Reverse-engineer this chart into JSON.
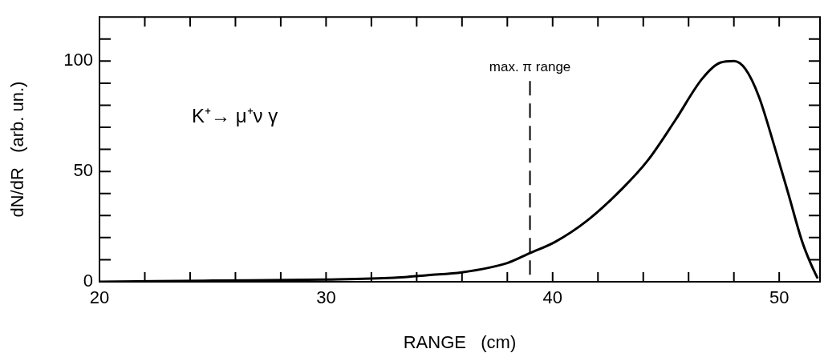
{
  "chart_data": {
    "type": "line",
    "xlabel": "RANGE   (cm)",
    "ylabel": "dN/dR   (arb. un.)",
    "x": [
      20,
      25,
      30,
      33,
      34.5,
      36,
      38,
      39,
      40.1,
      41.5,
      43.1,
      44.2,
      45.4,
      46.6,
      47.4,
      48,
      48.5,
      49.1,
      49.8,
      50.4,
      51,
      51.4,
      51.7
    ],
    "series": [
      {
        "color": "#000000",
        "values": [
          0,
          0.5,
          1,
          1.8,
          3,
          4.3,
          8.5,
          13,
          18,
          27.5,
          42.5,
          55,
          73,
          92,
          99.3,
          100,
          96.5,
          84,
          61,
          40,
          18.6,
          8,
          1.5
        ]
      }
    ],
    "xlim": [
      20,
      51.8
    ],
    "ylim": [
      0,
      120
    ],
    "xticks": [
      20,
      {
        "value": 22,
        "label": null
      },
      {
        "value": 24,
        "label": null
      },
      {
        "value": 26,
        "label": null
      },
      {
        "value": 28,
        "label": null
      },
      30,
      {
        "value": 32,
        "label": null
      },
      {
        "value": 34,
        "label": null
      },
      {
        "value": 36,
        "label": null
      },
      {
        "value": 38,
        "label": null
      },
      40,
      {
        "value": 42,
        "label": null
      },
      {
        "value": 44,
        "label": null
      },
      {
        "value": 46,
        "label": null
      },
      {
        "value": 48,
        "label": null
      },
      50
    ],
    "yticks": [
      0,
      {
        "value": 10,
        "label": null
      },
      {
        "value": 20,
        "label": null
      },
      {
        "value": 30,
        "label": null
      },
      {
        "value": 40,
        "label": null
      },
      50,
      {
        "value": 60,
        "label": null
      },
      {
        "value": 70,
        "label": null
      },
      {
        "value": 80,
        "label": null
      },
      {
        "value": 90,
        "label": null
      },
      100,
      {
        "value": 110,
        "label": null
      }
    ],
    "ref_lines": [
      {
        "axis": "x",
        "value": 39,
        "label": "max. π range",
        "line_style": "dashed",
        "color": "#000000"
      }
    ],
    "annotations": [
      "K⁺→ μ⁺ν γ"
    ],
    "marker": "none",
    "line_style": "solid",
    "grid": false,
    "legend": false
  }
}
